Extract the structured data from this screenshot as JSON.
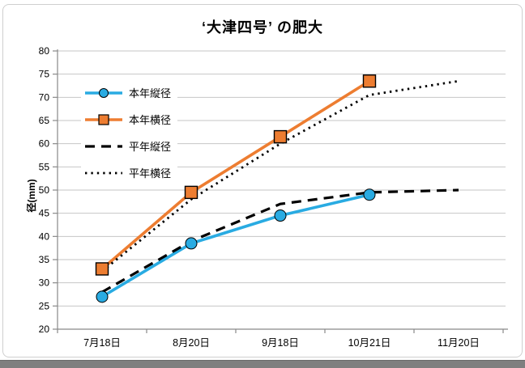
{
  "chart_data": {
    "type": "line",
    "title": "‘大津四号’ の肥大",
    "xlabel": "",
    "ylabel": "径(mm)",
    "ylim": [
      20,
      80
    ],
    "y_tick_step": 5,
    "grid": "horizontal-on",
    "legend_position": "upper-left-inside",
    "categories": [
      "7月18日",
      "8月20日",
      "9月18日",
      "10月21日",
      "11月20日"
    ],
    "series": [
      {
        "name": "本年縦径",
        "color": "#29abe2",
        "line": "solid",
        "marker": "circle",
        "values": [
          27,
          38.5,
          44.5,
          49,
          null
        ]
      },
      {
        "name": "本年横径",
        "color": "#ed7d31",
        "line": "solid",
        "marker": "square",
        "values": [
          33,
          49.5,
          61.5,
          73.5,
          null
        ]
      },
      {
        "name": "平年縦径",
        "color": "#000000",
        "line": "dashed",
        "marker": "none",
        "values": [
          28,
          39,
          47,
          49.5,
          50
        ]
      },
      {
        "name": "平年横径",
        "color": "#000000",
        "line": "dotted",
        "marker": "none",
        "values": [
          32.5,
          48,
          60,
          70.5,
          73.5
        ]
      }
    ],
    "colors": {
      "gridline": "#c6c6c6",
      "axis": "#898989",
      "tick_label": "#000000"
    }
  }
}
